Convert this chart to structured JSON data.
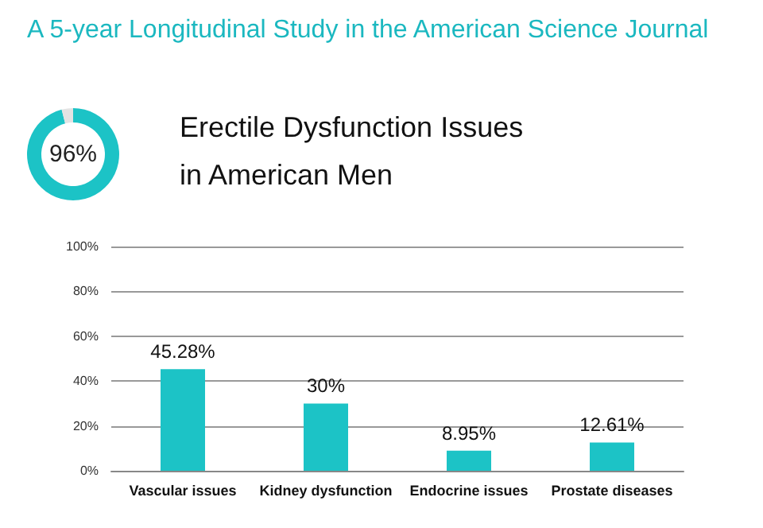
{
  "chart_data": [
    {
      "type": "donut",
      "title": "A 5-year Longitudinal Study in the American Science Journal",
      "subtitle": "Erectile Dysfunction Issues in American Men",
      "categories": [
        null,
        null
      ],
      "values": [
        96,
        4
      ],
      "colors": [
        "#1cc3c6",
        "#e3e3e3"
      ],
      "value_labels": [
        "96%",
        null
      ]
    },
    {
      "type": "bar",
      "categories": [
        "Vascular issues",
        "Kidney dysfunction",
        "Endocrine issues",
        "Prostate diseases"
      ],
      "values": [
        45.28,
        30,
        8.95,
        12.61
      ],
      "color": "#1cc3c6",
      "value_labels": [
        "45.28%",
        "30%",
        "8.95%",
        "12.61%"
      ],
      "ylim": [
        0,
        100
      ],
      "yticks": [
        {
          "value": 0,
          "label": "0%"
        },
        {
          "value": 20,
          "label": "20%"
        },
        {
          "value": 40,
          "label": "40%"
        },
        {
          "value": 60,
          "label": "60%"
        },
        {
          "value": 80,
          "label": "80%"
        },
        {
          "value": 100,
          "label": "100%"
        }
      ],
      "grid": "y"
    }
  ]
}
